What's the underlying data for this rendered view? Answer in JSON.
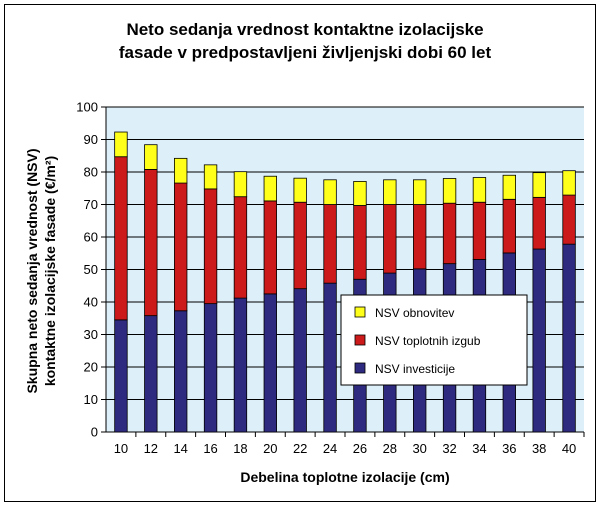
{
  "chart_data": {
    "type": "bar",
    "stacked": true,
    "title_lines": [
      "Neto sedanja vrednost kontaktne izolacijske",
      "fasade v predpostavljeni življenjski dobi 60 let"
    ],
    "xlabel": "Debelina toplotne izolacije (cm)",
    "ylabel_lines": [
      "Skupna neto sedanja vrednost (NSV)",
      "kontaktne izolacijske fasade (€/m²)"
    ],
    "ylim": [
      0,
      100
    ],
    "yticks": [
      0,
      10,
      20,
      30,
      40,
      50,
      60,
      70,
      80,
      90,
      100
    ],
    "grid": true,
    "legend_position": "center-right",
    "categories": [
      "10",
      "12",
      "14",
      "16",
      "18",
      "20",
      "22",
      "24",
      "26",
      "28",
      "30",
      "32",
      "34",
      "36",
      "38",
      "40"
    ],
    "series": [
      {
        "name": "NSV investicije",
        "color": "#2E2A7F",
        "values": [
          34.5,
          35.8,
          37.3,
          39.5,
          41.2,
          42.5,
          44.1,
          45.8,
          47.0,
          48.9,
          50.2,
          51.8,
          53.1,
          55.1,
          56.3,
          57.8
        ]
      },
      {
        "name": "NSV toplotnih izgub",
        "color": "#CC1A1A",
        "values": [
          50.2,
          45.0,
          39.3,
          35.3,
          31.2,
          28.6,
          26.6,
          24.2,
          22.7,
          21.1,
          19.8,
          18.6,
          17.6,
          16.5,
          15.9,
          15.1
        ]
      },
      {
        "name": "NSV obnovitev",
        "color": "#FFFF1A",
        "values": [
          7.6,
          7.6,
          7.6,
          7.4,
          7.7,
          7.6,
          7.4,
          7.6,
          7.4,
          7.6,
          7.6,
          7.6,
          7.6,
          7.4,
          7.6,
          7.5
        ]
      }
    ],
    "plot_background": "#DDEFF9"
  }
}
